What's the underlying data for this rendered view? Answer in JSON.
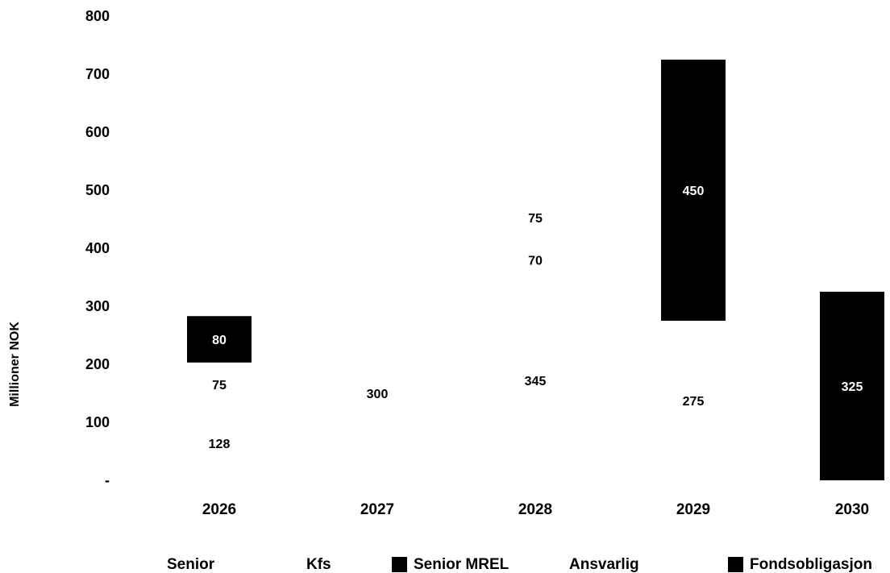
{
  "chart_data": {
    "type": "bar",
    "stacked": true,
    "categories": [
      "2026",
      "2027",
      "2028",
      "2029",
      "2030"
    ],
    "ylabel": "Millioner NOK",
    "ylim": [
      0,
      800
    ],
    "yticks": [
      {
        "value": 0,
        "label": "-"
      },
      {
        "value": 100,
        "label": "100"
      },
      {
        "value": 200,
        "label": "200"
      },
      {
        "value": 300,
        "label": "300"
      },
      {
        "value": 400,
        "label": "400"
      },
      {
        "value": 500,
        "label": "500"
      },
      {
        "value": 600,
        "label": "600"
      },
      {
        "value": 700,
        "label": "700"
      },
      {
        "value": 800,
        "label": "800"
      }
    ],
    "grid": false,
    "legend_position": "bottom",
    "series": [
      {
        "name": "Senior",
        "color": "#ffffff",
        "values": [
          128,
          300,
          345,
          275,
          0
        ]
      },
      {
        "name": "Kfs",
        "color": "#ffffff",
        "values": [
          75,
          0,
          70,
          0,
          0
        ]
      },
      {
        "name": "Senior MREL",
        "color": "#000000",
        "values": [
          80,
          0,
          0,
          450,
          325
        ]
      },
      {
        "name": "Ansvarlig",
        "color": "#ffffff",
        "values": [
          0,
          0,
          75,
          0,
          0
        ]
      },
      {
        "name": "Fondsobligasjon",
        "color": "#000000",
        "values": [
          0,
          0,
          0,
          0,
          0
        ]
      }
    ],
    "data_labels": [
      [
        "128",
        "300",
        "345",
        "275",
        ""
      ],
      [
        "75",
        "",
        "70",
        "",
        ""
      ],
      [
        "80",
        "",
        "",
        "450",
        "325"
      ],
      [
        "",
        "",
        "75",
        "",
        ""
      ],
      [
        "",
        "",
        "",
        "",
        ""
      ]
    ]
  }
}
